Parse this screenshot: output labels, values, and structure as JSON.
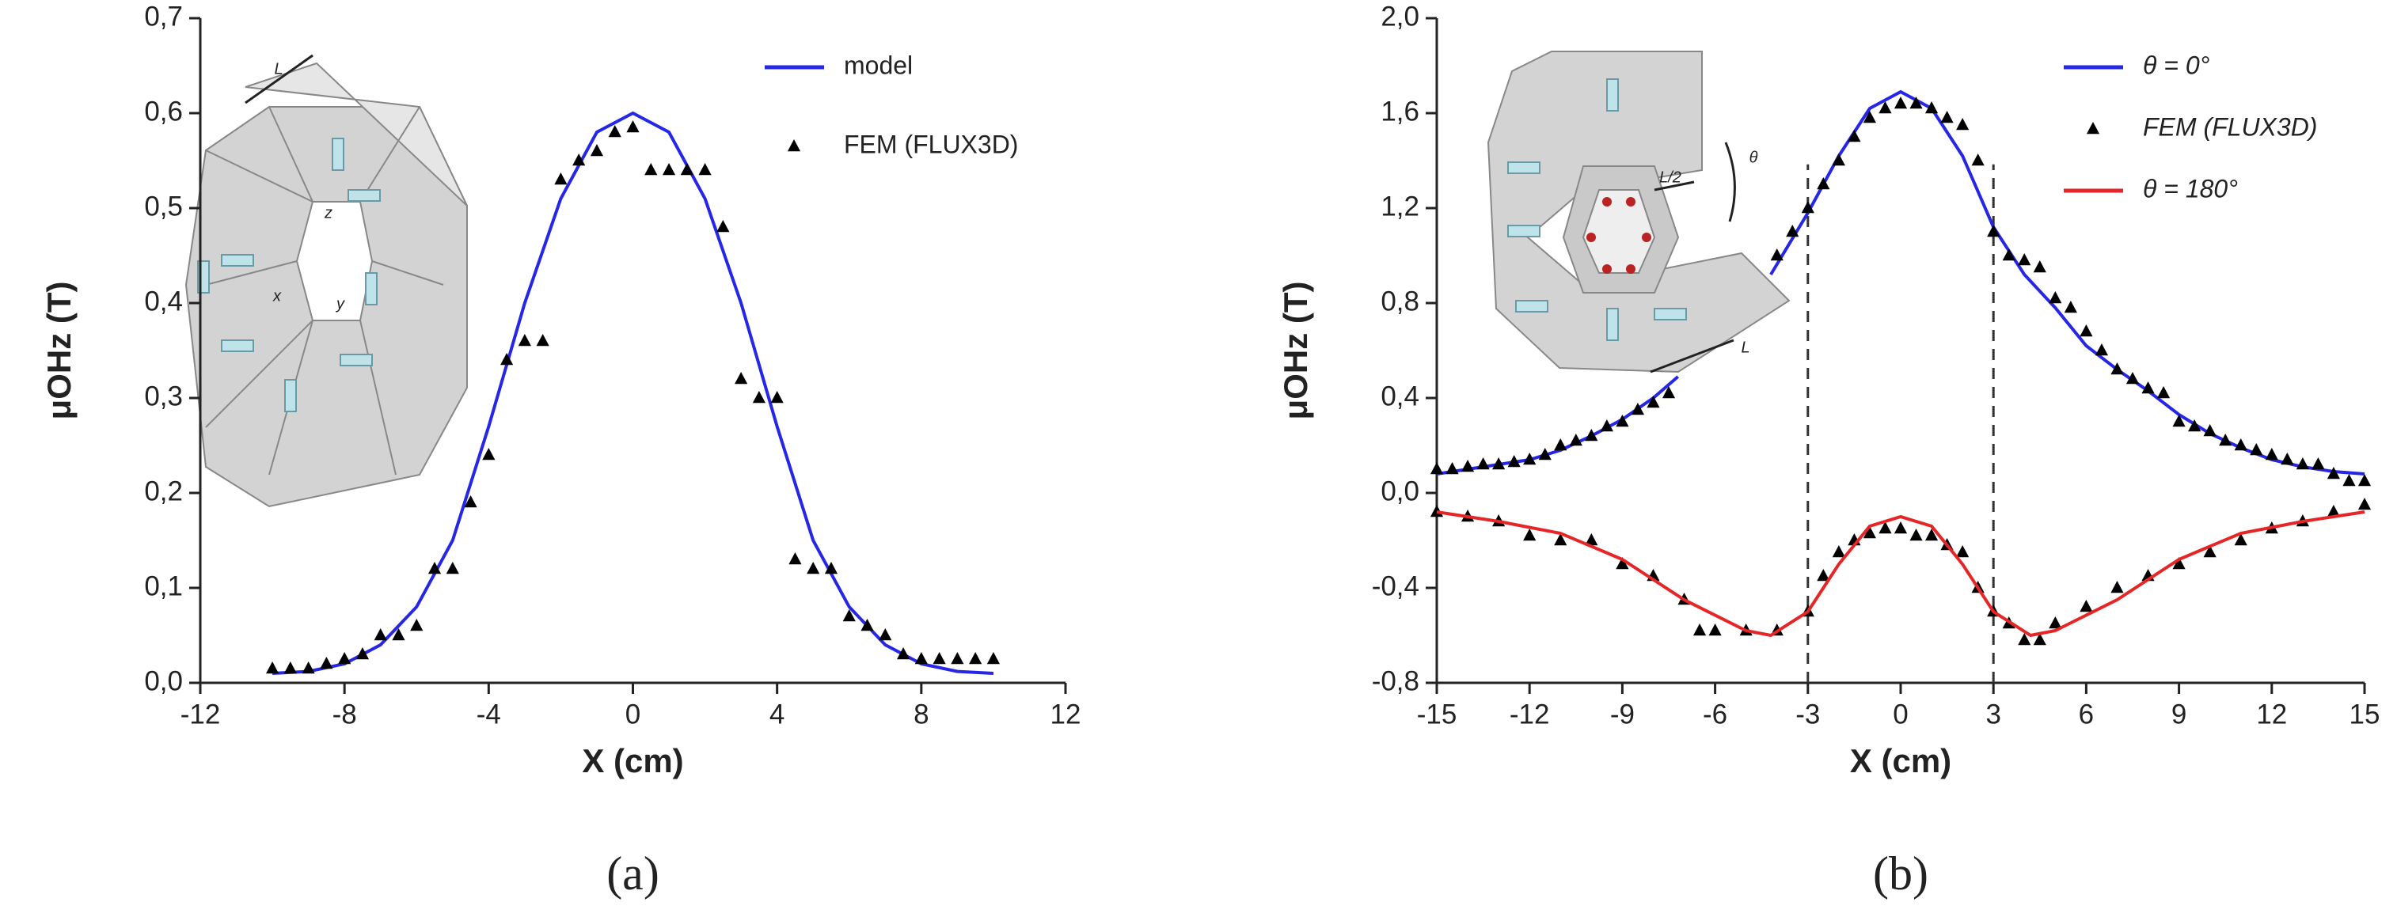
{
  "chart_data": [
    {
      "type": "line",
      "panel_label": "(a)",
      "x_label": "X (cm)",
      "y_label": "μOHz (T)",
      "legend": "upper right",
      "xlim": [
        -12,
        12
      ],
      "xticks": [
        -12,
        -8,
        -4,
        0,
        4,
        8,
        12
      ],
      "ylim": [
        0,
        0.7
      ],
      "yticks": [
        {
          "value": 0,
          "label": "0,0"
        },
        {
          "value": 0.1,
          "label": "0,1"
        },
        {
          "value": 0.2,
          "label": "0,2"
        },
        {
          "value": 0.3,
          "label": "0,3"
        },
        {
          "value": 0.4,
          "label": "0,4"
        },
        {
          "value": 0.5,
          "label": "0,5"
        },
        {
          "value": 0.6,
          "label": "0,6"
        },
        {
          "value": 0.7,
          "label": "0,7"
        }
      ],
      "inset_labels": [
        "L",
        "z",
        "x",
        "y"
      ],
      "series": [
        {
          "name": "model",
          "color": "#2626e6",
          "style": "line",
          "x": [
            -10,
            -9,
            -8,
            -7,
            -6,
            -5,
            -4,
            -3,
            -2,
            -1,
            0,
            1,
            2,
            3,
            4,
            5,
            6,
            7,
            8,
            9,
            10
          ],
          "values": [
            0.01,
            0.012,
            0.02,
            0.04,
            0.08,
            0.15,
            0.27,
            0.4,
            0.51,
            0.58,
            0.6,
            0.58,
            0.51,
            0.4,
            0.27,
            0.15,
            0.08,
            0.04,
            0.02,
            0.012,
            0.01
          ]
        },
        {
          "name": "FEM (FLUX3D)",
          "color": "#000000",
          "style": "marker",
          "x": [
            -10,
            -9.5,
            -9,
            -8.5,
            -8,
            -7.5,
            -7,
            -6.5,
            -6,
            -5.5,
            -5,
            -4.5,
            -4,
            -3.5,
            -3,
            -2.5,
            -2,
            -1.5,
            -1,
            -0.5,
            0,
            0.5,
            1,
            1.5,
            2,
            2.5,
            3,
            3.5,
            4,
            4.5,
            5,
            5.5,
            6,
            6.5,
            7,
            7.5,
            8,
            8.5,
            9,
            9.5,
            10
          ],
          "values": [
            0.015,
            0.015,
            0.015,
            0.02,
            0.025,
            0.03,
            0.05,
            0.05,
            0.06,
            0.12,
            0.12,
            0.19,
            0.24,
            0.34,
            0.36,
            0.36,
            0.53,
            0.55,
            0.56,
            0.58,
            0.585,
            0.54,
            0.54,
            0.54,
            0.54,
            0.48,
            0.32,
            0.3,
            0.3,
            0.13,
            0.12,
            0.12,
            0.07,
            0.06,
            0.05,
            0.03,
            0.025,
            0.025,
            0.025,
            0.025,
            0.025
          ]
        }
      ]
    },
    {
      "type": "line",
      "panel_label": "(b)",
      "x_label": "X (cm)",
      "y_label": "μOHz (T)",
      "legend": "upper right",
      "xlim": [
        -15,
        15
      ],
      "xticks": [
        -15,
        -12,
        -9,
        -6,
        -3,
        0,
        3,
        6,
        9,
        12,
        15
      ],
      "ylim": [
        -0.8,
        2.0
      ],
      "yticks": [
        {
          "value": -0.8,
          "label": "-0,8"
        },
        {
          "value": -0.4,
          "label": "-0,4"
        },
        {
          "value": 0,
          "label": "0,0"
        },
        {
          "value": 0.4,
          "label": "0,4"
        },
        {
          "value": 0.8,
          "label": "0,8"
        },
        {
          "value": 1.2,
          "label": "1,2"
        },
        {
          "value": 1.6,
          "label": "1,6"
        },
        {
          "value": 2.0,
          "label": "2,0"
        }
      ],
      "vlines": [
        -3,
        3
      ],
      "inset_labels": [
        "L/2",
        "θ",
        "L"
      ],
      "series": [
        {
          "name": "θ = 0°",
          "color": "#2626e6",
          "style": "line",
          "x": [
            -15,
            -14,
            -13,
            -12,
            -11,
            -10,
            -9,
            -8,
            -7.2,
            -5.5,
            -4.2,
            -3,
            -2,
            -1,
            0,
            1,
            2,
            3,
            4,
            5,
            6,
            7,
            8,
            9,
            10,
            11,
            12,
            13,
            14,
            15
          ],
          "values": [
            0.08,
            0.1,
            0.12,
            0.14,
            0.18,
            0.24,
            0.31,
            0.4,
            0.49,
            null,
            0.92,
            1.18,
            1.42,
            1.62,
            1.69,
            1.62,
            1.42,
            1.12,
            0.92,
            0.78,
            0.62,
            0.52,
            0.43,
            0.33,
            0.25,
            0.19,
            0.14,
            0.11,
            0.09,
            0.08
          ]
        },
        {
          "name": "FEM (FLUX3D)",
          "color": "#000000",
          "style": "marker",
          "x": [
            -15,
            -14.5,
            -14,
            -13.5,
            -13,
            -12.5,
            -12,
            -11.5,
            -11,
            -10.5,
            -10,
            -9.5,
            -9,
            -8.5,
            -8,
            -7.5,
            -4,
            -3.5,
            -3,
            -2.5,
            -2,
            -1.5,
            -1,
            -0.5,
            0,
            0.5,
            1,
            1.5,
            2,
            2.5,
            3,
            3.5,
            4,
            4.5,
            5,
            5.5,
            6,
            6.5,
            7,
            7.5,
            8,
            8.5,
            9,
            9.5,
            10,
            10.5,
            11,
            11.5,
            12,
            12.5,
            13,
            13.5,
            14,
            14.5,
            15,
            -15,
            -14,
            -13,
            -12,
            -11,
            -10,
            -9,
            -8,
            -7,
            -6.5,
            -6,
            -5,
            -4,
            -3,
            -2.5,
            -2,
            -1.5,
            -1,
            -0.5,
            0,
            0.5,
            1,
            1.5,
            2,
            2.5,
            3,
            3.5,
            4,
            4.5,
            5,
            6,
            7,
            8,
            9,
            10,
            11,
            12,
            13,
            14,
            15
          ],
          "values": [
            0.1,
            0.1,
            0.11,
            0.12,
            0.12,
            0.13,
            0.14,
            0.16,
            0.2,
            0.22,
            0.24,
            0.28,
            0.3,
            0.35,
            0.38,
            0.42,
            1.0,
            1.1,
            1.2,
            1.3,
            1.4,
            1.5,
            1.58,
            1.62,
            1.64,
            1.64,
            1.62,
            1.58,
            1.55,
            1.4,
            1.1,
            1.0,
            0.98,
            0.95,
            0.82,
            0.78,
            0.68,
            0.6,
            0.52,
            0.48,
            0.44,
            0.42,
            0.3,
            0.28,
            0.26,
            0.22,
            0.2,
            0.18,
            0.16,
            0.14,
            0.12,
            0.12,
            0.08,
            0.05,
            0.05,
            -0.08,
            -0.1,
            -0.12,
            -0.18,
            -0.2,
            -0.2,
            -0.3,
            -0.35,
            -0.45,
            -0.58,
            -0.58,
            -0.58,
            -0.58,
            -0.5,
            -0.35,
            -0.25,
            -0.2,
            -0.17,
            -0.15,
            -0.15,
            -0.18,
            -0.18,
            -0.22,
            -0.25,
            -0.4,
            -0.5,
            -0.55,
            -0.62,
            -0.62,
            -0.55,
            -0.48,
            -0.4,
            -0.35,
            -0.3,
            -0.25,
            -0.2,
            -0.15,
            -0.12,
            -0.08,
            -0.05
          ]
        },
        {
          "name": "θ = 180°",
          "color": "#e62626",
          "style": "line",
          "x": [
            -15,
            -13,
            -11,
            -9,
            -7,
            -5,
            -4.2,
            -3,
            -2,
            -1,
            0,
            1,
            2,
            3,
            4.2,
            5,
            7,
            9,
            11,
            13,
            15
          ],
          "values": [
            -0.08,
            -0.12,
            -0.17,
            -0.28,
            -0.45,
            -0.58,
            -0.6,
            -0.5,
            -0.3,
            -0.14,
            -0.1,
            -0.14,
            -0.3,
            -0.5,
            -0.6,
            -0.58,
            -0.45,
            -0.28,
            -0.17,
            -0.12,
            -0.08
          ]
        }
      ]
    }
  ]
}
